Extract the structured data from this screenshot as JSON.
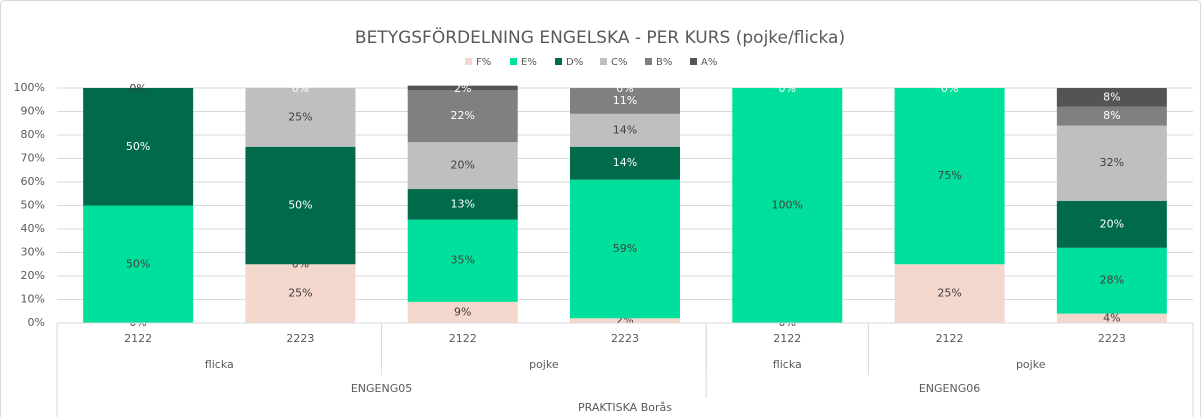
{
  "chart_data": {
    "type": "stacked_bar",
    "title": "BETYGSFÖRDELNING ENGELSKA - PER KURS (pojke/flicka)",
    "categories": [
      "2122",
      "2223",
      "2122",
      "2223",
      "2122",
      "2122",
      "2223"
    ],
    "category_levels": [
      [
        "flicka",
        "flicka",
        "pojke",
        "pojke",
        "flicka",
        "pojke",
        "pojke"
      ],
      [
        "ENGENG05",
        "ENGENG05",
        "ENGENG05",
        "ENGENG05",
        "ENGENG06",
        "ENGENG06",
        "ENGENG06"
      ],
      [
        "PRAKTISKA Borås",
        "PRAKTISKA Borås",
        "PRAKTISKA Borås",
        "PRAKTISKA Borås",
        "PRAKTISKA Borås",
        "PRAKTISKA Borås",
        "PRAKTISKA Borås"
      ]
    ],
    "series": [
      {
        "name": "F%",
        "color": "#f4d7cd",
        "values": [
          0,
          25,
          9,
          2,
          0,
          25,
          4
        ],
        "value_labels": [
          "0%",
          "25%",
          "9%",
          "2%",
          "0%",
          "25%",
          "4%"
        ]
      },
      {
        "name": "E%",
        "color": "#00e09c",
        "values": [
          50,
          0,
          35,
          59,
          100,
          75,
          28
        ],
        "value_labels": [
          "50%",
          "0%",
          "35%",
          "59%",
          "100%",
          "75%",
          "28%"
        ]
      },
      {
        "name": "D%",
        "color": "#006a4a",
        "values": [
          50,
          50,
          13,
          14,
          0,
          0,
          20
        ],
        "value_labels": [
          "50%",
          "50%",
          "13%",
          "14%",
          "0%",
          "0%",
          "20%"
        ]
      },
      {
        "name": "C%",
        "color": "#bfbfbf",
        "values": [
          0,
          25,
          20,
          14,
          null,
          null,
          32
        ],
        "value_labels": [
          "0%",
          "25%",
          "20%",
          "14%",
          null,
          null,
          "32%"
        ]
      },
      {
        "name": "B%",
        "color": "#808080",
        "values": [
          null,
          0,
          22,
          11,
          null,
          null,
          8
        ],
        "value_labels": [
          null,
          "0%",
          "22%",
          "11%",
          null,
          null,
          "8%"
        ]
      },
      {
        "name": "A%",
        "color": "#545454",
        "values": [
          null,
          null,
          2,
          0,
          null,
          null,
          8
        ],
        "value_labels": [
          null,
          null,
          "2%",
          "0%",
          null,
          null,
          "8%"
        ]
      }
    ],
    "ylim": [
      0,
      100
    ],
    "yticks": [
      {
        "value": 0,
        "label": "0%"
      },
      {
        "value": 10,
        "label": "10%"
      },
      {
        "value": 20,
        "label": "20%"
      },
      {
        "value": 30,
        "label": "30%"
      },
      {
        "value": 40,
        "label": "40%"
      },
      {
        "value": 50,
        "label": "50%"
      },
      {
        "value": 60,
        "label": "60%"
      },
      {
        "value": 70,
        "label": "70%"
      },
      {
        "value": 80,
        "label": "80%"
      },
      {
        "value": 90,
        "label": "90%"
      },
      {
        "value": 100,
        "label": "100%"
      }
    ],
    "grid": true,
    "legend": "top"
  }
}
